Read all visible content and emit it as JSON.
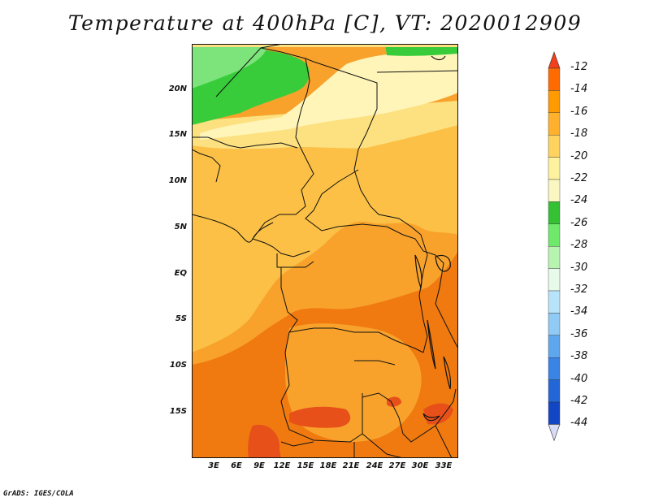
{
  "title": "Temperature at 400hPa [C], VT: 2020012909",
  "footer": "GrADS: IGES/COLA",
  "map": {
    "lat_labels": [
      "20N",
      "15N",
      "10N",
      "5N",
      "EQ",
      "5S",
      "10S",
      "15S"
    ],
    "lat_values": [
      20,
      15,
      10,
      5,
      0,
      -5,
      -10,
      -15
    ],
    "lon_labels": [
      "3E",
      "6E",
      "9E",
      "12E",
      "15E",
      "18E",
      "21E",
      "24E",
      "27E",
      "30E",
      "33E"
    ],
    "lon_values": [
      3,
      6,
      9,
      12,
      15,
      18,
      21,
      24,
      27,
      30,
      33
    ],
    "lat_range": [
      -20,
      25
    ],
    "lon_range": [
      0,
      35
    ],
    "colors": {
      "c_m12": "#e8501a",
      "c_m14": "#f07a10",
      "c_m16": "#f8a22c",
      "c_m18": "#fbc045",
      "c_m20": "#fde080",
      "c_m22": "#fff5b8",
      "c_m24": "#38cc3a",
      "c_m26": "#7ce47a"
    }
  },
  "colorbar": {
    "labels": [
      "-12",
      "-14",
      "-16",
      "-18",
      "-20",
      "-22",
      "-24",
      "-26",
      "-28",
      "-30",
      "-32",
      "-34",
      "-36",
      "-38",
      "-40",
      "-42",
      "-44"
    ],
    "colors": [
      "#f0401c",
      "#ff6b00",
      "#ff9a00",
      "#ffb12e",
      "#ffd35e",
      "#fff29e",
      "#faf7c3",
      "#34c134",
      "#6ee96a",
      "#b7f4b0",
      "#e8fbea",
      "#b8e4fa",
      "#8fcbf5",
      "#5ea7ee",
      "#3a84e6",
      "#2266d8",
      "#1246c4",
      "#0a22a0"
    ],
    "top_color": "#f0401c",
    "bottom_color": "#d8dcf6"
  }
}
